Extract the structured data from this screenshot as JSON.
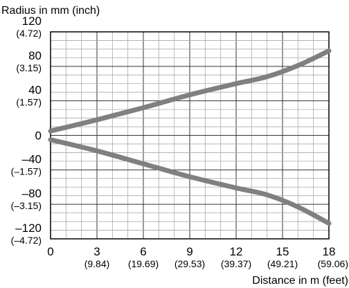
{
  "chart_data": {
    "type": "line",
    "ylabel": "Radius in mm (inch)",
    "xlabel": "Distance in m (feet)",
    "xlim": [
      0,
      18
    ],
    "ylim": [
      -120,
      120
    ],
    "grid": true,
    "x_ticks": [
      {
        "value": 0,
        "main": "0",
        "sub": ""
      },
      {
        "value": 3,
        "main": "3",
        "sub": "(9.84)"
      },
      {
        "value": 6,
        "main": "6",
        "sub": "(19.69)"
      },
      {
        "value": 9,
        "main": "9",
        "sub": "(29.53)"
      },
      {
        "value": 12,
        "main": "12",
        "sub": "(39.37)"
      },
      {
        "value": 15,
        "main": "15",
        "sub": "(49.21)"
      },
      {
        "value": 18,
        "main": "18",
        "sub": "(59.06)"
      }
    ],
    "y_ticks": [
      {
        "value": 120,
        "main": "120",
        "sub": "(4.72)"
      },
      {
        "value": 80,
        "main": "80",
        "sub": "(3.15)"
      },
      {
        "value": 40,
        "main": "40",
        "sub": "(1.57)"
      },
      {
        "value": 0,
        "main": "0",
        "sub": ""
      },
      {
        "value": -40,
        "main": "–40",
        "sub": "(–1.57)"
      },
      {
        "value": -80,
        "main": "–80",
        "sub": "(–3.15)"
      },
      {
        "value": -120,
        "main": "–120",
        "sub": "(–4.72)"
      }
    ],
    "line_color": "#808080",
    "series": [
      {
        "x": [
          0,
          3,
          6,
          9,
          12,
          14,
          16,
          18
        ],
        "y": [
          5,
          18,
          32,
          47,
          60,
          68,
          81,
          98
        ]
      },
      {
        "x": [
          0,
          3,
          6,
          9,
          12,
          14,
          16,
          18
        ],
        "y": [
          -5,
          -18,
          -33,
          -48,
          -61,
          -69,
          -83,
          -102
        ]
      }
    ]
  }
}
